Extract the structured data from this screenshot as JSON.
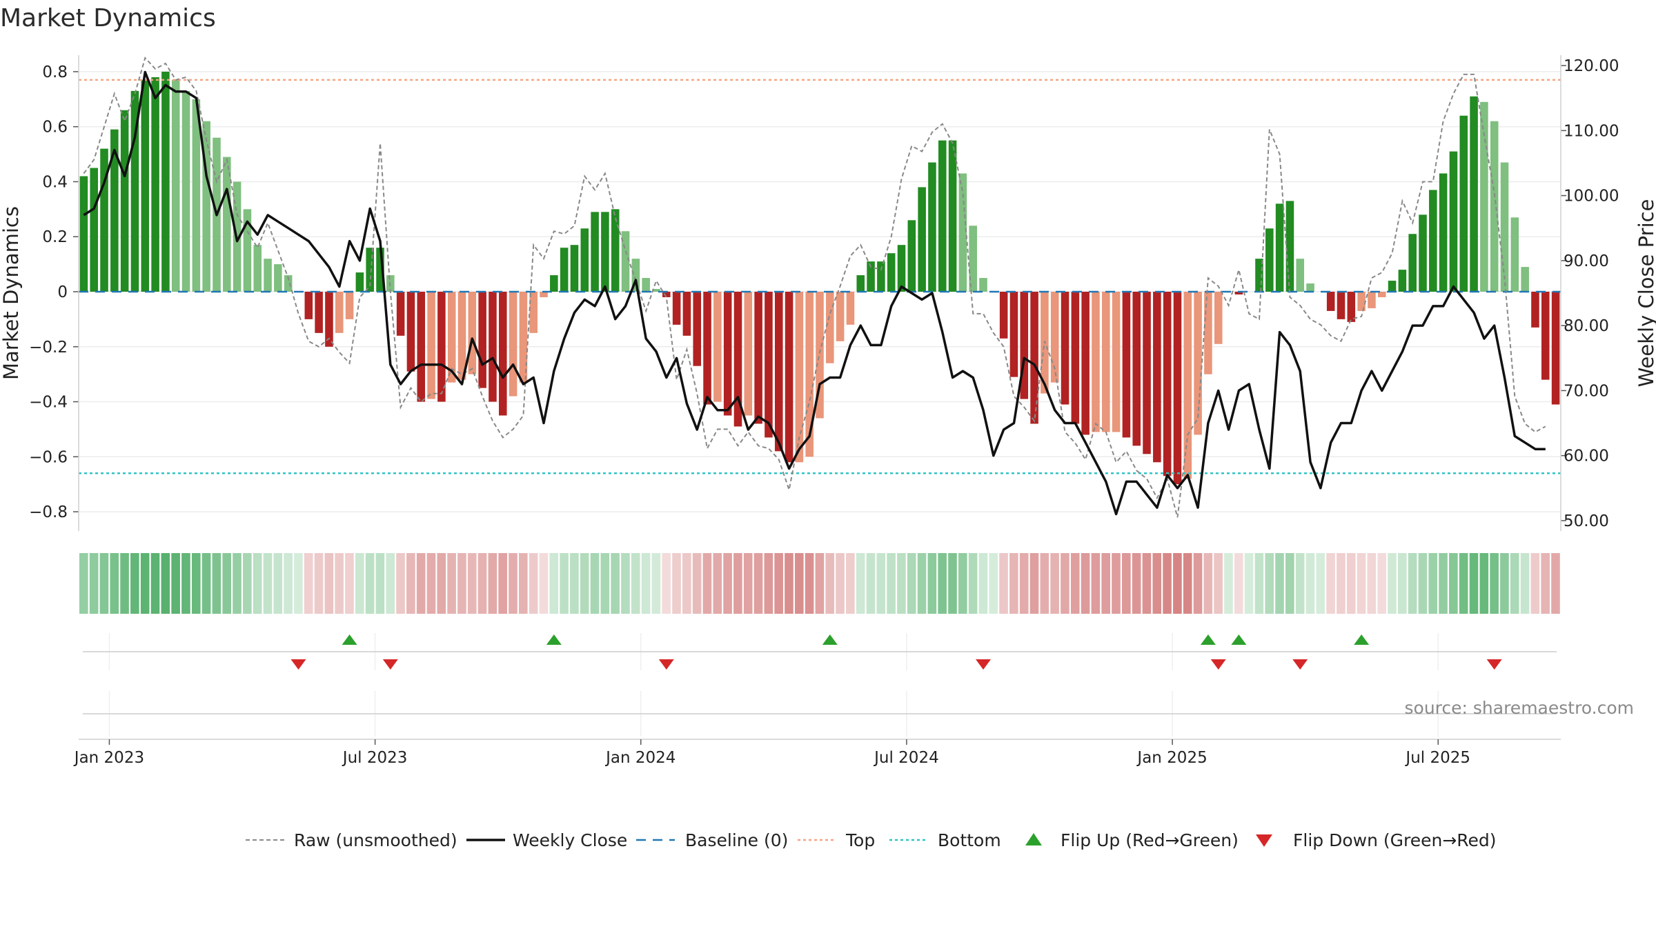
{
  "chart_data": {
    "type": "bar",
    "title": "Market Dynamics",
    "ylabel_left": "Market Dynamics",
    "ylabel_right": "Weekly Close Price",
    "ylim_left": [
      -0.87,
      0.86
    ],
    "ylim_right": [
      48.4,
      121.6
    ],
    "left_ticks": [
      {
        "value": 0.8,
        "label": "0.8"
      },
      {
        "value": 0.6,
        "label": "0.6"
      },
      {
        "value": 0.4,
        "label": "0.4"
      },
      {
        "value": 0.2,
        "label": "0.2"
      },
      {
        "value": 0,
        "label": "0"
      },
      {
        "value": -0.2,
        "label": "−0.2"
      },
      {
        "value": -0.4,
        "label": "−0.4"
      },
      {
        "value": -0.6,
        "label": "−0.6"
      },
      {
        "value": -0.8,
        "label": "−0.8"
      }
    ],
    "right_ticks": [
      {
        "value": 120,
        "label": "120.00"
      },
      {
        "value": 110,
        "label": "110.00"
      },
      {
        "value": 100,
        "label": "100.00"
      },
      {
        "value": 90,
        "label": "90.00"
      },
      {
        "value": 80,
        "label": "80.00"
      },
      {
        "value": 70,
        "label": "70.00"
      },
      {
        "value": 60,
        "label": "60.00"
      },
      {
        "value": 50,
        "label": "50.00"
      }
    ],
    "x_ticks": [
      {
        "week": 2.5,
        "label": "Jan 2023"
      },
      {
        "week": 28.5,
        "label": "Jul 2023"
      },
      {
        "week": 54.5,
        "label": "Jan 2024"
      },
      {
        "week": 80.5,
        "label": "Jul 2024"
      },
      {
        "week": 106.5,
        "label": "Jan 2025"
      },
      {
        "week": 132.5,
        "label": "Jul 2025"
      }
    ],
    "bar_values": [
      0.42,
      0.45,
      0.52,
      0.59,
      0.66,
      0.73,
      0.77,
      0.78,
      0.8,
      0.77,
      0.73,
      0.7,
      0.62,
      0.56,
      0.49,
      0.4,
      0.3,
      0.17,
      0.12,
      0.1,
      0.06,
      0.0,
      -0.1,
      -0.15,
      -0.2,
      -0.15,
      -0.1,
      0.07,
      0.16,
      0.16,
      0.06,
      -0.16,
      -0.29,
      -0.4,
      -0.39,
      -0.4,
      -0.33,
      -0.32,
      -0.3,
      -0.35,
      -0.4,
      -0.45,
      -0.38,
      -0.33,
      -0.15,
      -0.02,
      0.06,
      0.16,
      0.17,
      0.23,
      0.29,
      0.29,
      0.3,
      0.22,
      0.12,
      0.05,
      0.01,
      -0.02,
      -0.12,
      -0.16,
      -0.27,
      -0.41,
      -0.4,
      -0.45,
      -0.49,
      -0.45,
      -0.48,
      -0.53,
      -0.58,
      -0.62,
      -0.62,
      -0.6,
      -0.46,
      -0.26,
      -0.18,
      -0.12,
      0.06,
      0.11,
      0.11,
      0.14,
      0.17,
      0.26,
      0.38,
      0.47,
      0.55,
      0.55,
      0.43,
      0.24,
      0.05,
      0.0,
      -0.17,
      -0.31,
      -0.39,
      -0.48,
      -0.37,
      -0.33,
      -0.41,
      -0.48,
      -0.52,
      -0.51,
      -0.51,
      -0.51,
      -0.53,
      -0.56,
      -0.59,
      -0.62,
      -0.67,
      -0.7,
      -0.68,
      -0.52,
      -0.3,
      -0.19,
      0.0,
      -0.01,
      0.0,
      0.12,
      0.23,
      0.32,
      0.33,
      0.12,
      0.03,
      0.0,
      -0.07,
      -0.1,
      -0.11,
      -0.07,
      -0.06,
      -0.02,
      0.04,
      0.08,
      0.21,
      0.28,
      0.37,
      0.43,
      0.51,
      0.64,
      0.71,
      0.69,
      0.62,
      0.47,
      0.27,
      0.09,
      -0.13,
      -0.32,
      -0.41
    ],
    "bar_colors": {
      "strong_green": "#228b22",
      "light_green": "#7fbf7f",
      "strong_red": "#b22222",
      "light_red": "#e9967a"
    },
    "close_prices": [
      97,
      98,
      102,
      107,
      103,
      109,
      119,
      115,
      117,
      116,
      116,
      115,
      103,
      97,
      101,
      93,
      96,
      94,
      97,
      96,
      95,
      94,
      93,
      91,
      89,
      86,
      93,
      90,
      98,
      93,
      74,
      71,
      73,
      74,
      74,
      74,
      73,
      71,
      78,
      74,
      75,
      72,
      74,
      71,
      72,
      65,
      73,
      78,
      82,
      84,
      83,
      86,
      81,
      83,
      87,
      78,
      76,
      72,
      75,
      68,
      64,
      69,
      67,
      67,
      69,
      64,
      66,
      65,
      62,
      58,
      61,
      63,
      71,
      72,
      72,
      77,
      80,
      77,
      77,
      83,
      86,
      85,
      84,
      85,
      79,
      72,
      73,
      72,
      67,
      60,
      64,
      65,
      75,
      74,
      71,
      67,
      65,
      65,
      62,
      59,
      56,
      51,
      56,
      56,
      54,
      52,
      57,
      55,
      57,
      52,
      65,
      70,
      64,
      70,
      71,
      64,
      58,
      79,
      77,
      73,
      59,
      55,
      62,
      65,
      65,
      70,
      73,
      70,
      73,
      76,
      80,
      80,
      83,
      83,
      86,
      84,
      82,
      78,
      80,
      72,
      63,
      62,
      61,
      61
    ],
    "raw_values": [
      0.43,
      0.48,
      0.6,
      0.72,
      0.62,
      0.72,
      0.85,
      0.81,
      0.83,
      0.77,
      0.78,
      0.73,
      0.55,
      0.4,
      0.48,
      0.28,
      0.22,
      0.16,
      0.25,
      0.15,
      0.05,
      -0.08,
      -0.18,
      -0.2,
      -0.17,
      -0.22,
      -0.26,
      -0.02,
      0.02,
      0.54,
      0.0,
      -0.42,
      -0.35,
      -0.4,
      -0.37,
      -0.37,
      -0.28,
      -0.3,
      -0.28,
      -0.38,
      -0.47,
      -0.53,
      -0.5,
      -0.45,
      0.17,
      0.12,
      0.22,
      0.21,
      0.24,
      0.42,
      0.37,
      0.43,
      0.27,
      0.15,
      0.04,
      -0.07,
      0.04,
      -0.02,
      -0.32,
      -0.21,
      -0.37,
      -0.57,
      -0.5,
      -0.5,
      -0.56,
      -0.51,
      -0.56,
      -0.57,
      -0.61,
      -0.72,
      -0.53,
      -0.4,
      -0.22,
      -0.08,
      0.02,
      0.13,
      0.17,
      0.09,
      0.08,
      0.2,
      0.41,
      0.53,
      0.51,
      0.58,
      0.61,
      0.54,
      0.36,
      -0.08,
      -0.08,
      -0.15,
      -0.2,
      -0.38,
      -0.42,
      -0.47,
      -0.18,
      -0.28,
      -0.51,
      -0.55,
      -0.61,
      -0.48,
      -0.51,
      -0.62,
      -0.58,
      -0.65,
      -0.68,
      -0.75,
      -0.68,
      -0.82,
      -0.52,
      -0.46,
      0.05,
      0.02,
      -0.05,
      0.08,
      -0.08,
      -0.1,
      0.59,
      0.5,
      -0.02,
      -0.05,
      -0.1,
      -0.12,
      -0.16,
      -0.18,
      -0.1,
      -0.09,
      0.05,
      0.07,
      0.14,
      0.33,
      0.25,
      0.4,
      0.4,
      0.62,
      0.72,
      0.79,
      0.79,
      0.57,
      0.36,
      0.05,
      -0.38,
      -0.48,
      -0.51,
      -0.49
    ],
    "horizontal_lines": {
      "baseline": 0,
      "top": 0.77,
      "bottom": -0.66
    },
    "lines_colors": {
      "raw": "#888888",
      "close": "#111111",
      "baseline": "#1f77b4",
      "top": "#f4a582",
      "bottom": "#2ec4c4"
    },
    "flip_up_weeks": [
      26,
      46,
      73,
      110,
      113,
      125
    ],
    "flip_down_weeks": [
      21,
      30,
      57,
      88,
      111,
      119,
      138
    ],
    "flip_up_color": "#2ca02c",
    "flip_down_color": "#d62728",
    "heat_colors": {
      "green": "#2e9e4a",
      "red": "#c65454"
    },
    "legend": [
      {
        "key": "raw",
        "label": "Raw (unsmoothed)"
      },
      {
        "key": "close",
        "label": "Weekly Close"
      },
      {
        "key": "baseline",
        "label": "Baseline (0)"
      },
      {
        "key": "top",
        "label": "Top"
      },
      {
        "key": "bottom",
        "label": "Bottom"
      },
      {
        "key": "flip_up",
        "label": "Flip Up (Red→Green)"
      },
      {
        "key": "flip_down",
        "label": "Flip Down (Green→Red)"
      }
    ],
    "source_text": "source: sharemaestro.com"
  }
}
